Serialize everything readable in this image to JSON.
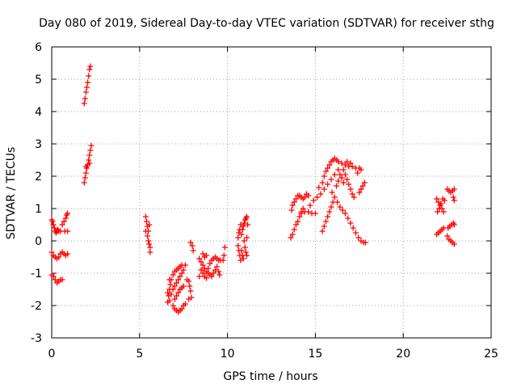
{
  "chart_data": {
    "type": "scatter",
    "title": "Day 080 of 2019, Sidereal Day-to-day VTEC variation (SDTVAR) for receiver sthg",
    "xlabel": "GPS time / hours",
    "ylabel": "SDTVAR / TECUs",
    "xlim": [
      0,
      25
    ],
    "ylim": [
      -3,
      6
    ],
    "xticks": [
      "0",
      "5",
      "10",
      "15",
      "20",
      "25"
    ],
    "yticks": [
      "-3",
      "-2",
      "-1",
      "0",
      "1",
      "2",
      "3",
      "4",
      "5",
      "6"
    ],
    "grid": true,
    "marker": "+",
    "series": [
      {
        "name": "SDTVAR",
        "color": "#ff0000",
        "points": [
          [
            0.0,
            0.65
          ],
          [
            0.05,
            0.6
          ],
          [
            0.1,
            0.5
          ],
          [
            0.15,
            0.4
          ],
          [
            0.2,
            0.3
          ],
          [
            0.25,
            0.25
          ],
          [
            0.3,
            0.3
          ],
          [
            0.35,
            0.35
          ],
          [
            0.4,
            0.3
          ],
          [
            0.5,
            0.3
          ],
          [
            0.6,
            0.5
          ],
          [
            0.7,
            0.6
          ],
          [
            0.8,
            0.7
          ],
          [
            0.85,
            0.8
          ],
          [
            0.9,
            0.85
          ],
          [
            0.75,
            0.3
          ],
          [
            0.9,
            0.3
          ],
          [
            0.0,
            -0.35
          ],
          [
            0.1,
            -0.45
          ],
          [
            0.2,
            -0.5
          ],
          [
            0.3,
            -0.55
          ],
          [
            0.4,
            -0.5
          ],
          [
            0.5,
            -0.4
          ],
          [
            0.6,
            -0.35
          ],
          [
            0.7,
            -0.4
          ],
          [
            0.8,
            -0.45
          ],
          [
            0.9,
            -0.4
          ],
          [
            0.0,
            -1.05
          ],
          [
            0.1,
            -1.1
          ],
          [
            0.2,
            -1.2
          ],
          [
            0.3,
            -1.3
          ],
          [
            0.4,
            -1.25
          ],
          [
            0.5,
            -1.2
          ],
          [
            0.6,
            -1.2
          ],
          [
            1.85,
            4.25
          ],
          [
            1.9,
            4.4
          ],
          [
            1.95,
            4.6
          ],
          [
            2.0,
            4.75
          ],
          [
            2.05,
            4.9
          ],
          [
            2.1,
            5.1
          ],
          [
            2.15,
            5.3
          ],
          [
            2.2,
            5.4
          ],
          [
            1.85,
            1.8
          ],
          [
            1.9,
            1.95
          ],
          [
            1.95,
            2.1
          ],
          [
            2.0,
            2.25
          ],
          [
            2.05,
            2.35
          ],
          [
            2.1,
            2.5
          ],
          [
            2.15,
            2.65
          ],
          [
            2.2,
            2.8
          ],
          [
            2.25,
            2.95
          ],
          [
            1.95,
            2.3
          ],
          [
            2.15,
            2.4
          ],
          [
            5.35,
            0.75
          ],
          [
            5.4,
            0.6
          ],
          [
            5.45,
            0.45
          ],
          [
            5.5,
            0.3
          ],
          [
            5.45,
            0.15
          ],
          [
            5.5,
            0.0
          ],
          [
            5.55,
            -0.1
          ],
          [
            5.6,
            -0.2
          ],
          [
            5.6,
            -0.35
          ],
          [
            5.35,
            0.3
          ],
          [
            5.55,
            0.5
          ],
          [
            6.6,
            -1.9
          ],
          [
            6.65,
            -1.7
          ],
          [
            6.7,
            -1.5
          ],
          [
            6.75,
            -1.35
          ],
          [
            6.8,
            -1.2
          ],
          [
            6.9,
            -1.05
          ],
          [
            7.0,
            -0.95
          ],
          [
            7.1,
            -0.9
          ],
          [
            7.2,
            -0.85
          ],
          [
            7.3,
            -0.8
          ],
          [
            7.4,
            -0.75
          ],
          [
            6.7,
            -1.85
          ],
          [
            6.8,
            -1.65
          ],
          [
            6.9,
            -1.5
          ],
          [
            7.0,
            -1.4
          ],
          [
            7.1,
            -1.3
          ],
          [
            7.2,
            -1.2
          ],
          [
            7.3,
            -1.1
          ],
          [
            7.4,
            -1.0
          ],
          [
            7.5,
            -0.9
          ],
          [
            7.6,
            -0.75
          ],
          [
            6.9,
            -2.0
          ],
          [
            7.0,
            -2.1
          ],
          [
            7.1,
            -2.15
          ],
          [
            7.2,
            -2.2
          ],
          [
            7.3,
            -2.15
          ],
          [
            7.4,
            -2.1
          ],
          [
            7.5,
            -2.0
          ],
          [
            7.6,
            -1.95
          ],
          [
            7.0,
            -1.8
          ],
          [
            7.1,
            -1.7
          ],
          [
            7.2,
            -1.6
          ],
          [
            7.3,
            -1.5
          ],
          [
            7.4,
            -1.45
          ],
          [
            7.5,
            -1.4
          ],
          [
            6.6,
            -1.6
          ],
          [
            6.7,
            -1.2
          ],
          [
            7.8,
            -1.25
          ],
          [
            7.85,
            -1.4
          ],
          [
            7.9,
            -1.55
          ],
          [
            7.95,
            -1.75
          ],
          [
            7.8,
            -1.8
          ],
          [
            7.7,
            -1.2
          ],
          [
            7.9,
            -0.05
          ],
          [
            8.0,
            -0.15
          ],
          [
            8.05,
            -0.3
          ],
          [
            8.4,
            -0.55
          ],
          [
            8.5,
            -0.65
          ],
          [
            8.6,
            -0.75
          ],
          [
            8.7,
            -0.85
          ],
          [
            8.8,
            -0.95
          ],
          [
            8.9,
            -1.0
          ],
          [
            9.0,
            -1.05
          ],
          [
            9.1,
            -1.1
          ],
          [
            9.2,
            -1.0
          ],
          [
            9.3,
            -0.9
          ],
          [
            9.4,
            -0.8
          ],
          [
            8.5,
            -0.9
          ],
          [
            8.6,
            -1.0
          ],
          [
            8.7,
            -1.1
          ],
          [
            8.8,
            -1.15
          ],
          [
            8.9,
            -0.85
          ],
          [
            9.0,
            -0.7
          ],
          [
            9.1,
            -0.6
          ],
          [
            9.2,
            -0.55
          ],
          [
            9.3,
            -0.5
          ],
          [
            9.4,
            -0.55
          ],
          [
            9.5,
            -0.6
          ],
          [
            8.6,
            -0.4
          ],
          [
            8.7,
            -0.5
          ],
          [
            8.8,
            -0.45
          ],
          [
            9.5,
            -0.95
          ],
          [
            9.55,
            -1.05
          ],
          [
            8.4,
            -1.1
          ],
          [
            9.6,
            -0.6
          ],
          [
            9.75,
            -0.6
          ],
          [
            9.8,
            -0.45
          ],
          [
            9.85,
            -0.2
          ],
          [
            10.6,
            -0.15
          ],
          [
            10.65,
            -0.3
          ],
          [
            10.7,
            -0.45
          ],
          [
            10.75,
            -0.6
          ],
          [
            10.6,
            0.1
          ],
          [
            10.65,
            0.25
          ],
          [
            10.7,
            0.35
          ],
          [
            10.75,
            0.5
          ],
          [
            10.8,
            -0.3
          ],
          [
            10.85,
            -0.45
          ],
          [
            10.9,
            -0.55
          ],
          [
            10.8,
            0.2
          ],
          [
            10.85,
            0.35
          ],
          [
            10.9,
            0.45
          ],
          [
            10.95,
            0.55
          ],
          [
            11.0,
            0.65
          ],
          [
            11.05,
            0.7
          ],
          [
            11.1,
            0.75
          ],
          [
            11.0,
            -0.2
          ],
          [
            11.05,
            -0.35
          ],
          [
            11.1,
            -0.45
          ],
          [
            11.15,
            0.5
          ],
          [
            10.95,
            0.0
          ],
          [
            11.1,
            0.1
          ],
          [
            13.6,
            0.1
          ],
          [
            13.7,
            0.2
          ],
          [
            13.8,
            0.35
          ],
          [
            13.9,
            0.5
          ],
          [
            14.0,
            0.6
          ],
          [
            14.1,
            0.75
          ],
          [
            14.2,
            0.9
          ],
          [
            14.3,
            1.0
          ],
          [
            13.65,
            0.95
          ],
          [
            13.7,
            1.1
          ],
          [
            13.8,
            1.2
          ],
          [
            13.9,
            1.3
          ],
          [
            14.0,
            1.4
          ],
          [
            14.1,
            1.4
          ],
          [
            14.2,
            1.35
          ],
          [
            14.3,
            1.3
          ],
          [
            14.4,
            1.35
          ],
          [
            14.5,
            1.45
          ],
          [
            14.6,
            1.4
          ],
          [
            14.2,
            0.85
          ],
          [
            14.4,
            0.9
          ],
          [
            14.6,
            0.9
          ],
          [
            14.8,
            0.85
          ],
          [
            15.0,
            0.85
          ],
          [
            14.7,
            1.1
          ],
          [
            14.9,
            1.25
          ],
          [
            15.1,
            1.35
          ],
          [
            15.3,
            1.45
          ],
          [
            15.5,
            1.6
          ],
          [
            15.7,
            1.75
          ],
          [
            15.9,
            1.9
          ],
          [
            16.1,
            2.05
          ],
          [
            16.3,
            2.2
          ],
          [
            15.2,
            1.65
          ],
          [
            15.4,
            1.8
          ],
          [
            15.5,
            2.0
          ],
          [
            15.6,
            2.15
          ],
          [
            15.7,
            2.25
          ],
          [
            15.8,
            2.35
          ],
          [
            15.9,
            2.45
          ],
          [
            16.0,
            2.5
          ],
          [
            16.1,
            2.55
          ],
          [
            16.2,
            2.5
          ],
          [
            16.3,
            2.45
          ],
          [
            16.5,
            2.4
          ],
          [
            16.7,
            2.35
          ],
          [
            16.9,
            2.3
          ],
          [
            17.1,
            2.3
          ],
          [
            17.3,
            2.25
          ],
          [
            17.5,
            2.25
          ],
          [
            17.6,
            2.2
          ],
          [
            16.6,
            2.2
          ],
          [
            16.7,
            2.05
          ],
          [
            16.8,
            1.9
          ],
          [
            16.9,
            1.75
          ],
          [
            17.0,
            1.6
          ],
          [
            17.1,
            1.45
          ],
          [
            17.2,
            1.35
          ],
          [
            16.6,
            1.8
          ],
          [
            16.5,
            1.95
          ],
          [
            16.4,
            2.05
          ],
          [
            16.3,
            1.85
          ],
          [
            16.2,
            1.7
          ],
          [
            15.95,
            1.5
          ],
          [
            16.1,
            1.35
          ],
          [
            16.25,
            1.2
          ],
          [
            16.4,
            1.05
          ],
          [
            16.55,
            0.95
          ],
          [
            16.7,
            0.85
          ],
          [
            16.85,
            0.7
          ],
          [
            17.0,
            0.55
          ],
          [
            17.15,
            0.4
          ],
          [
            17.3,
            0.25
          ],
          [
            17.45,
            0.1
          ],
          [
            17.6,
            0.0
          ],
          [
            17.75,
            -0.05
          ],
          [
            17.85,
            -0.05
          ],
          [
            15.4,
            0.3
          ],
          [
            15.5,
            0.45
          ],
          [
            15.6,
            0.6
          ],
          [
            15.7,
            0.75
          ],
          [
            15.8,
            0.9
          ],
          [
            15.9,
            1.05
          ],
          [
            16.0,
            1.2
          ],
          [
            16.8,
            2.45
          ],
          [
            17.0,
            2.4
          ],
          [
            17.4,
            2.1
          ],
          [
            17.6,
            1.6
          ],
          [
            17.7,
            1.7
          ],
          [
            17.8,
            1.8
          ],
          [
            17.5,
            1.5
          ],
          [
            21.9,
            1.3
          ],
          [
            22.0,
            1.2
          ],
          [
            22.1,
            1.1
          ],
          [
            22.2,
            1.0
          ],
          [
            22.3,
            0.9
          ],
          [
            21.95,
            0.9
          ],
          [
            22.05,
            1.0
          ],
          [
            22.15,
            1.15
          ],
          [
            22.25,
            1.3
          ],
          [
            22.35,
            1.25
          ],
          [
            21.9,
            0.2
          ],
          [
            22.0,
            0.25
          ],
          [
            22.1,
            0.3
          ],
          [
            22.2,
            0.35
          ],
          [
            22.3,
            0.4
          ],
          [
            22.5,
            1.6
          ],
          [
            22.6,
            1.55
          ],
          [
            22.7,
            1.5
          ],
          [
            22.8,
            1.55
          ],
          [
            22.9,
            1.6
          ],
          [
            22.85,
            1.35
          ],
          [
            22.9,
            1.25
          ],
          [
            22.55,
            0.4
          ],
          [
            22.65,
            0.45
          ],
          [
            22.75,
            0.5
          ],
          [
            22.85,
            0.55
          ],
          [
            22.9,
            0.5
          ],
          [
            22.5,
            0.15
          ],
          [
            22.6,
            0.05
          ],
          [
            22.7,
            0.0
          ],
          [
            22.8,
            -0.05
          ],
          [
            22.9,
            -0.1
          ]
        ]
      }
    ]
  }
}
